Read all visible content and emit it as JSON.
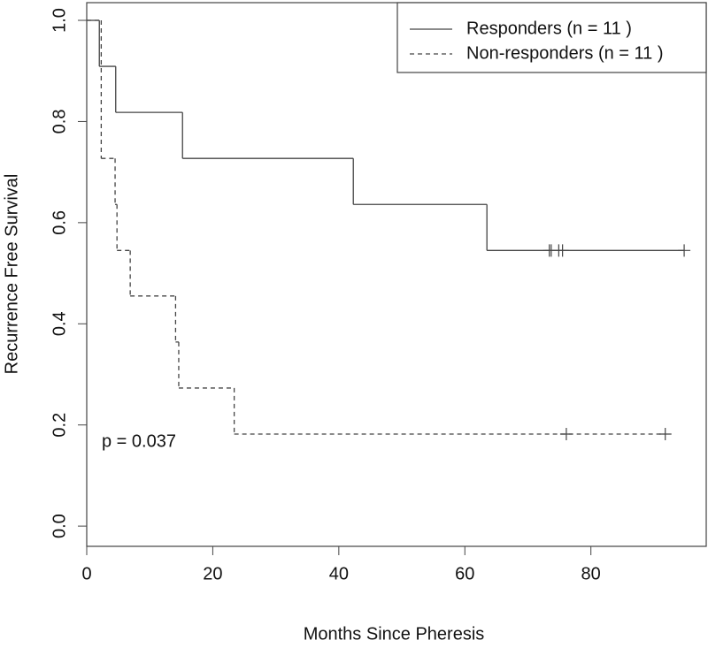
{
  "chart_data": {
    "type": "step",
    "x_label": "Months Since Pheresis",
    "y_label": "Recurrence Free Survival",
    "annotation": "p = 0.037",
    "xlim": [
      0,
      98.3
    ],
    "ylim": [
      -0.04,
      1.035
    ],
    "xticks": [
      0,
      20,
      40,
      60,
      80
    ],
    "yticks": [
      {
        "value": 0,
        "label": "0.0"
      },
      {
        "value": 0.2,
        "label": "0.2"
      },
      {
        "value": 0.4,
        "label": "0.4"
      },
      {
        "value": 0.6,
        "label": "0.6"
      },
      {
        "value": 0.8,
        "label": "0.8"
      },
      {
        "value": 1,
        "label": "1.0"
      }
    ],
    "legend": "top-right",
    "series": [
      {
        "name": "Responders (n = 11 )",
        "color": "#444444",
        "linestyle": "solid",
        "x": [
          0,
          2,
          4.6,
          15.2,
          42.3,
          63.5
        ],
        "values": [
          1,
          0.909,
          0.818,
          0.727,
          0.636,
          0.545
        ],
        "censor_x": [
          73.4,
          73.7,
          74.9,
          75.5,
          94.8
        ],
        "censor_values": [
          0.545,
          0.545,
          0.545,
          0.545,
          0.545
        ]
      },
      {
        "name": "Non-responders (n = 11 )",
        "color": "#444444",
        "linestyle": "dashed",
        "x": [
          0,
          2.3,
          4.5,
          4.8,
          6.9,
          14.1,
          14.4,
          14.6,
          23.4
        ],
        "values": [
          1,
          0.727,
          0.636,
          0.545,
          0.455,
          0.364,
          0.364,
          0.273,
          0.182
        ],
        "censor_x": [
          76.1,
          91.8
        ],
        "censor_values": [
          0.182,
          0.182
        ]
      }
    ]
  }
}
